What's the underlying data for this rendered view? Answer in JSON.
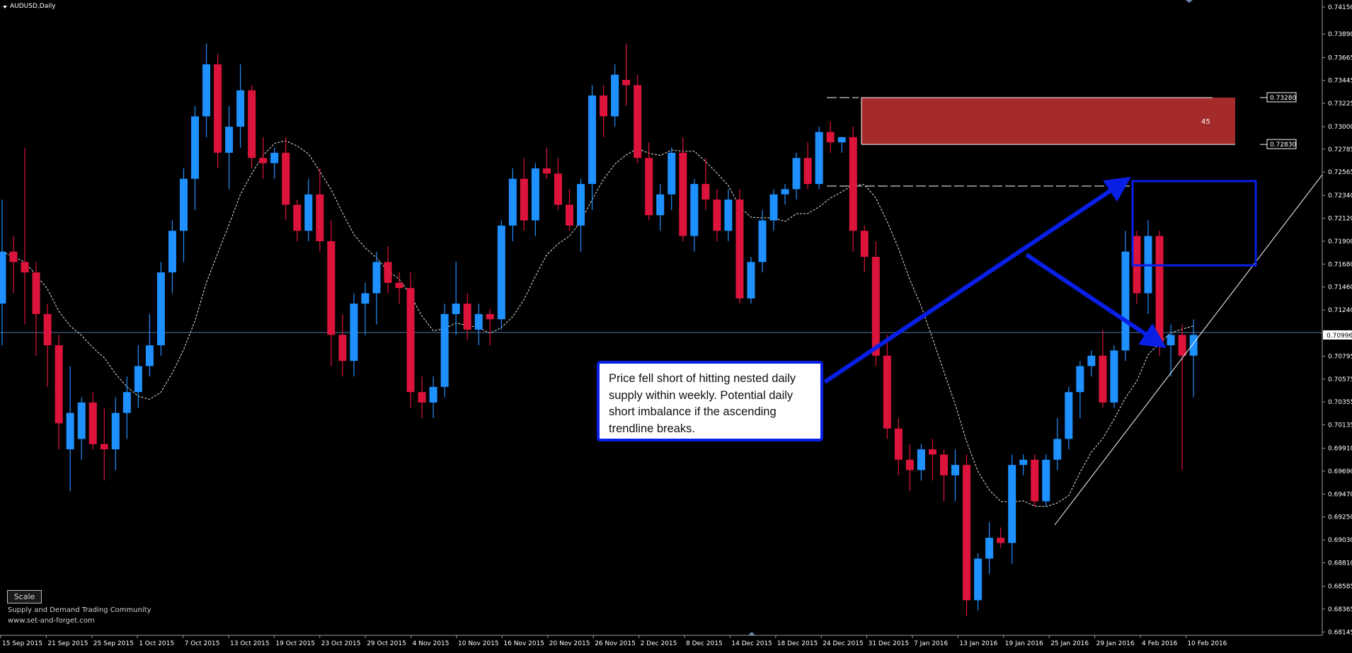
{
  "title": "AUDUSD,Daily",
  "scale_button": "Scale",
  "annotation": "Price fell short of hitting nested daily supply within weekly. Potential daily short imbalance if the ascending trendline breaks.",
  "footer": {
    "community": "Supply and Demand Trading Community",
    "site": "www.set-and-forget.com"
  },
  "zone_count": "45",
  "current_price": "0.70996",
  "colors": {
    "bull": "#1e90ff",
    "bear": "#dc143c",
    "zone": "#a52a2a",
    "arrow": "#0a1fe6",
    "background": "#000000"
  },
  "chart_data": {
    "type": "candlestick",
    "symbol": "AUDUSD",
    "timeframe": "Daily",
    "y_range": [
      0.6814,
      0.7415
    ],
    "y_ticks": [
      "0.74150",
      "0.73890",
      "0.73665",
      "0.73445",
      "0.73225",
      "0.73000",
      "0.72785",
      "0.72565",
      "0.72340",
      "0.72120",
      "0.71900",
      "0.71680",
      "0.71460",
      "0.71240",
      "0.71015",
      "0.70795",
      "0.70575",
      "0.70355",
      "0.70135",
      "0.69910",
      "0.69690",
      "0.69470",
      "0.69250",
      "0.69030",
      "0.68810",
      "0.68585",
      "0.68365",
      "0.68145"
    ],
    "x_labels": [
      "15 Sep 2015",
      "21 Sep 2015",
      "25 Sep 2015",
      "1 Oct 2015",
      "7 Oct 2015",
      "13 Oct 2015",
      "19 Oct 2015",
      "23 Oct 2015",
      "29 Oct 2015",
      "4 Nov 2015",
      "10 Nov 2015",
      "16 Nov 2015",
      "20 Nov 2015",
      "26 Nov 2015",
      "2 Dec 2015",
      "8 Dec 2015",
      "14 Dec 2015",
      "18 Dec 2015",
      "24 Dec 2015",
      "31 Dec 2015",
      "7 Jan 2016",
      "13 Jan 2016",
      "19 Jan 2016",
      "25 Jan 2016",
      "29 Jan 2016",
      "4 Feb 2016",
      "10 Feb 2016"
    ],
    "price_labels": [
      "0.73280",
      "0.72830"
    ],
    "candles": [
      [
        0.713,
        0.723,
        0.709,
        0.718
      ],
      [
        0.718,
        0.7195,
        0.714,
        0.717
      ],
      [
        0.717,
        0.728,
        0.711,
        0.716
      ],
      [
        0.716,
        0.717,
        0.708,
        0.712
      ],
      [
        0.712,
        0.713,
        0.705,
        0.709
      ],
      [
        0.709,
        0.71,
        0.699,
        0.7015
      ],
      [
        0.699,
        0.707,
        0.695,
        0.7025
      ],
      [
        0.7,
        0.704,
        0.698,
        0.7035
      ],
      [
        0.7035,
        0.7045,
        0.699,
        0.6995
      ],
      [
        0.6995,
        0.703,
        0.696,
        0.699
      ],
      [
        0.699,
        0.704,
        0.697,
        0.7025
      ],
      [
        0.7025,
        0.706,
        0.7,
        0.7045
      ],
      [
        0.7045,
        0.709,
        0.703,
        0.707
      ],
      [
        0.707,
        0.712,
        0.706,
        0.709
      ],
      [
        0.709,
        0.717,
        0.708,
        0.716
      ],
      [
        0.716,
        0.721,
        0.714,
        0.72
      ],
      [
        0.72,
        0.726,
        0.717,
        0.725
      ],
      [
        0.725,
        0.732,
        0.722,
        0.731
      ],
      [
        0.731,
        0.738,
        0.729,
        0.736
      ],
      [
        0.736,
        0.737,
        0.726,
        0.7275
      ],
      [
        0.7275,
        0.732,
        0.724,
        0.73
      ],
      [
        0.73,
        0.736,
        0.728,
        0.7335
      ],
      [
        0.7335,
        0.734,
        0.726,
        0.727
      ],
      [
        0.727,
        0.729,
        0.725,
        0.7265
      ],
      [
        0.7265,
        0.728,
        0.725,
        0.7275
      ],
      [
        0.7275,
        0.729,
        0.721,
        0.7225
      ],
      [
        0.7225,
        0.723,
        0.719,
        0.72
      ],
      [
        0.72,
        0.725,
        0.719,
        0.7235
      ],
      [
        0.7235,
        0.726,
        0.718,
        0.719
      ],
      [
        0.719,
        0.721,
        0.707,
        0.71
      ],
      [
        0.71,
        0.712,
        0.706,
        0.7075
      ],
      [
        0.7075,
        0.714,
        0.706,
        0.713
      ],
      [
        0.713,
        0.715,
        0.71,
        0.714
      ],
      [
        0.714,
        0.718,
        0.711,
        0.717
      ],
      [
        0.717,
        0.7185,
        0.714,
        0.715
      ],
      [
        0.715,
        0.716,
        0.713,
        0.7145
      ],
      [
        0.7145,
        0.716,
        0.703,
        0.7045
      ],
      [
        0.7045,
        0.706,
        0.702,
        0.7035
      ],
      [
        0.7035,
        0.706,
        0.702,
        0.705
      ],
      [
        0.705,
        0.713,
        0.704,
        0.712
      ],
      [
        0.712,
        0.717,
        0.71,
        0.713
      ],
      [
        0.713,
        0.714,
        0.7095,
        0.7105
      ],
      [
        0.7105,
        0.713,
        0.709,
        0.712
      ],
      [
        0.712,
        0.7125,
        0.709,
        0.7115
      ],
      [
        0.7115,
        0.721,
        0.7105,
        0.7205
      ],
      [
        0.7205,
        0.726,
        0.719,
        0.725
      ],
      [
        0.725,
        0.727,
        0.72,
        0.721
      ],
      [
        0.721,
        0.7265,
        0.7195,
        0.726
      ],
      [
        0.726,
        0.728,
        0.725,
        0.7255
      ],
      [
        0.7255,
        0.727,
        0.722,
        0.7225
      ],
      [
        0.7225,
        0.724,
        0.72,
        0.7205
      ],
      [
        0.7205,
        0.725,
        0.718,
        0.7245
      ],
      [
        0.7245,
        0.734,
        0.722,
        0.733
      ],
      [
        0.733,
        0.734,
        0.729,
        0.731
      ],
      [
        0.731,
        0.736,
        0.73,
        0.735
      ],
      [
        0.7345,
        0.738,
        0.732,
        0.734
      ],
      [
        0.734,
        0.735,
        0.7265,
        0.727
      ],
      [
        0.727,
        0.7285,
        0.721,
        0.7215
      ],
      [
        0.7215,
        0.7245,
        0.72,
        0.7235
      ],
      [
        0.7235,
        0.728,
        0.722,
        0.7275
      ],
      [
        0.7275,
        0.729,
        0.719,
        0.7195
      ],
      [
        0.7195,
        0.725,
        0.718,
        0.7245
      ],
      [
        0.7245,
        0.727,
        0.722,
        0.723
      ],
      [
        0.723,
        0.724,
        0.719,
        0.72
      ],
      [
        0.72,
        0.724,
        0.719,
        0.723
      ],
      [
        0.723,
        0.724,
        0.713,
        0.7135
      ],
      [
        0.7135,
        0.7175,
        0.713,
        0.717
      ],
      [
        0.717,
        0.722,
        0.716,
        0.721
      ],
      [
        0.721,
        0.724,
        0.72,
        0.7235
      ],
      [
        0.7235,
        0.7245,
        0.7225,
        0.724
      ],
      [
        0.724,
        0.7275,
        0.723,
        0.727
      ],
      [
        0.727,
        0.7285,
        0.724,
        0.7245
      ],
      [
        0.7245,
        0.73,
        0.724,
        0.7295
      ],
      [
        0.7295,
        0.7305,
        0.7275,
        0.7285
      ],
      [
        0.7285,
        0.729,
        0.7275,
        0.729
      ],
      [
        0.729,
        0.73,
        0.718,
        0.72
      ],
      [
        0.72,
        0.7205,
        0.716,
        0.7175
      ],
      [
        0.7175,
        0.719,
        0.707,
        0.708
      ],
      [
        0.708,
        0.71,
        0.7,
        0.701
      ],
      [
        0.701,
        0.702,
        0.6965,
        0.698
      ],
      [
        0.698,
        0.6995,
        0.695,
        0.697
      ],
      [
        0.697,
        0.6995,
        0.696,
        0.699
      ],
      [
        0.699,
        0.7,
        0.696,
        0.6985
      ],
      [
        0.6985,
        0.699,
        0.694,
        0.6965
      ],
      [
        0.6965,
        0.699,
        0.694,
        0.6975
      ],
      [
        0.6975,
        0.6985,
        0.683,
        0.6845
      ],
      [
        0.6845,
        0.689,
        0.6835,
        0.6885
      ],
      [
        0.6885,
        0.692,
        0.687,
        0.6905
      ],
      [
        0.6905,
        0.6915,
        0.6895,
        0.69
      ],
      [
        0.69,
        0.6985,
        0.688,
        0.6975
      ],
      [
        0.6975,
        0.6985,
        0.6965,
        0.698
      ],
      [
        0.698,
        0.6985,
        0.6935,
        0.694
      ],
      [
        0.694,
        0.6985,
        0.6935,
        0.698
      ],
      [
        0.698,
        0.702,
        0.697,
        0.7
      ],
      [
        0.7,
        0.705,
        0.699,
        0.7045
      ],
      [
        0.7045,
        0.7075,
        0.702,
        0.707
      ],
      [
        0.707,
        0.7085,
        0.706,
        0.708
      ],
      [
        0.708,
        0.7105,
        0.703,
        0.7035
      ],
      [
        0.7035,
        0.709,
        0.703,
        0.7085
      ],
      [
        0.7085,
        0.72,
        0.7075,
        0.718
      ],
      [
        0.7195,
        0.72,
        0.713,
        0.714
      ],
      [
        0.714,
        0.721,
        0.712,
        0.7195
      ],
      [
        0.7195,
        0.72,
        0.708,
        0.709
      ],
      [
        0.709,
        0.711,
        0.706,
        0.71
      ],
      [
        0.71,
        0.711,
        0.697,
        0.708
      ],
      [
        0.708,
        0.7115,
        0.704,
        0.71
      ]
    ]
  }
}
